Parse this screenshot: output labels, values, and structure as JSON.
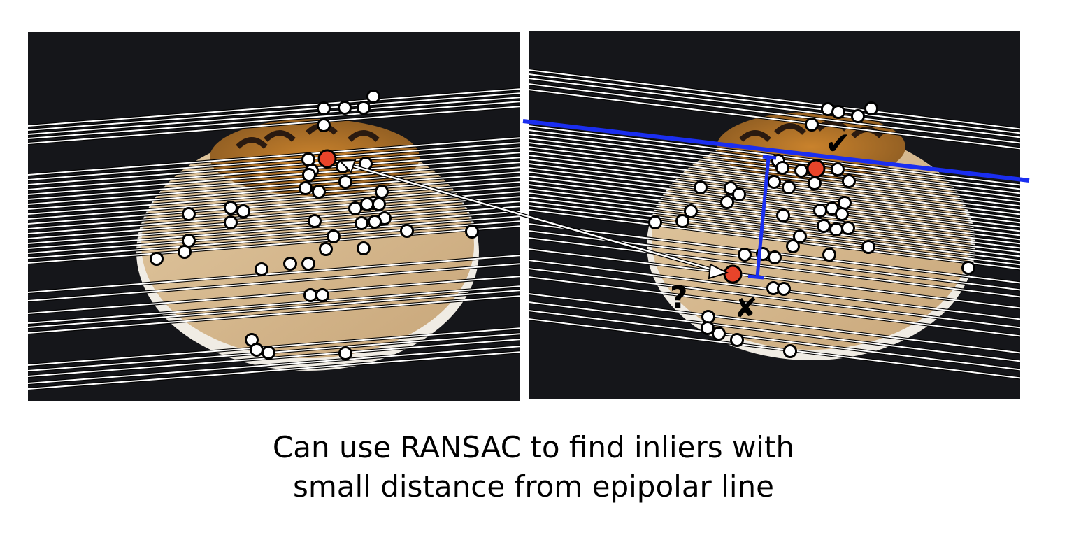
{
  "caption": {
    "line1": "Can use RANSAC to find inliers with",
    "line2": "small distance from epipolar line"
  },
  "annotations": {
    "question_mark": "?",
    "cross_mark": "✘",
    "check_mark": "✔"
  },
  "colors": {
    "background": "#ffffff",
    "photo_background": "#15161a",
    "turntable": "#d2b58e",
    "epipolar_line": "#ffffff",
    "epipolar_line_outline": "#000000",
    "feature_point": "#ffffff",
    "selected_point": "#e8442a",
    "highlight_line": "#1a2ef0"
  },
  "icons": {
    "inlier": "check-mark-icon",
    "outlier": "cross-mark-icon",
    "unknown": "question-mark-icon",
    "correspondence": "double-arrow-icon"
  }
}
